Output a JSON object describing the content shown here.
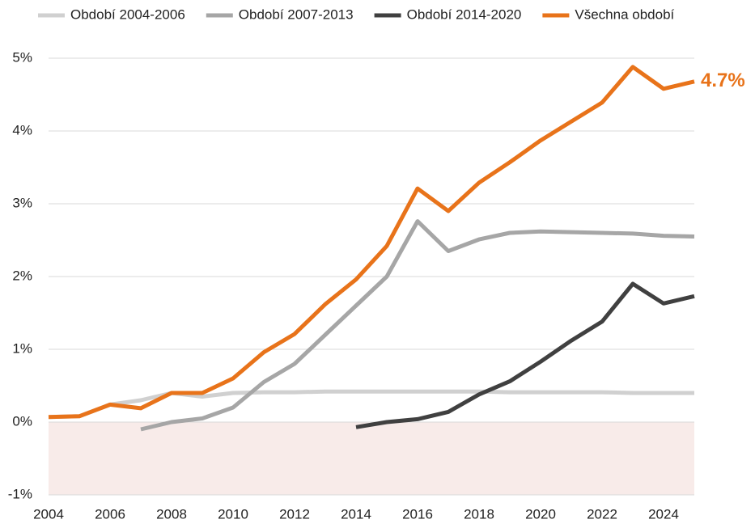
{
  "chart_data": {
    "type": "line",
    "x": [
      2004,
      2005,
      2006,
      2007,
      2008,
      2009,
      2010,
      2011,
      2012,
      2013,
      2014,
      2015,
      2016,
      2017,
      2018,
      2019,
      2020,
      2021,
      2022,
      2023,
      2024,
      2025
    ],
    "series": [
      {
        "name": "Období 2004-2006",
        "color": "#d0d0d0",
        "values": [
          0.07,
          0.08,
          0.24,
          0.3,
          0.4,
          0.35,
          0.4,
          0.41,
          0.41,
          0.42,
          0.42,
          0.42,
          0.42,
          0.42,
          0.42,
          0.41,
          0.41,
          0.41,
          0.41,
          0.4,
          0.4,
          0.4
        ]
      },
      {
        "name": "Období 2007-2013",
        "color": "#a6a6a6",
        "values": [
          null,
          null,
          null,
          -0.1,
          0.0,
          0.05,
          0.2,
          0.55,
          0.8,
          1.2,
          1.6,
          2.0,
          2.76,
          2.35,
          2.51,
          2.6,
          2.62,
          2.61,
          2.6,
          2.59,
          2.56,
          2.55
        ]
      },
      {
        "name": "Období 2014-2020",
        "color": "#404040",
        "values": [
          null,
          null,
          null,
          null,
          null,
          null,
          null,
          null,
          null,
          null,
          -0.07,
          0.0,
          0.04,
          0.14,
          0.38,
          0.56,
          0.83,
          1.12,
          1.38,
          1.9,
          1.63,
          1.73
        ]
      },
      {
        "name": "Všechna období",
        "color": "#e8731a",
        "values": [
          0.07,
          0.08,
          0.24,
          0.19,
          0.4,
          0.4,
          0.6,
          0.96,
          1.21,
          1.62,
          1.96,
          2.42,
          3.21,
          2.9,
          3.29,
          3.57,
          3.87,
          4.13,
          4.39,
          4.88,
          4.58,
          4.68
        ],
        "value_labels": [
          null,
          null,
          null,
          null,
          null,
          null,
          null,
          null,
          null,
          null,
          null,
          null,
          null,
          null,
          null,
          null,
          null,
          null,
          null,
          null,
          null,
          "4.7%"
        ]
      }
    ],
    "xlim": [
      2004,
      2025
    ],
    "xticks": [
      2004,
      2006,
      2008,
      2010,
      2012,
      2014,
      2016,
      2018,
      2020,
      2022,
      2024
    ],
    "ylim": [
      -1,
      5
    ],
    "yticks": [
      {
        "value": -1,
        "label": "-1%"
      },
      {
        "value": 0,
        "label": "0%"
      },
      {
        "value": 1,
        "label": "1%"
      },
      {
        "value": 2,
        "label": "2%"
      },
      {
        "value": 3,
        "label": "3%"
      },
      {
        "value": 4,
        "label": "4%"
      },
      {
        "value": 5,
        "label": "5%"
      }
    ],
    "grid": true,
    "negative_shade": "#f8ebe9",
    "legend": "top"
  }
}
